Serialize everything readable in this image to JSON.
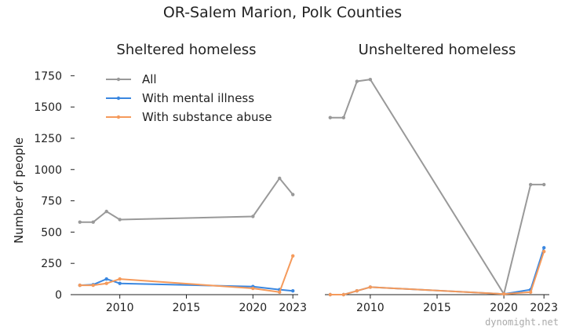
{
  "page": {
    "title": "OR-Salem Marion, Polk Counties",
    "watermark": "dynomight.net"
  },
  "colors": {
    "All": "#999999",
    "With mental illness": "#3a87e0",
    "With substance abuse": "#f59a5b"
  },
  "chart_data": [
    {
      "type": "line",
      "title": "Sheltered homeless",
      "xlabel": "",
      "ylabel": "Number of people",
      "xlim": [
        2006.6,
        2023.4
      ],
      "ylim": [
        0,
        1790
      ],
      "x_ticks": [
        2010,
        2015,
        2020,
        2023
      ],
      "y_ticks": [
        0,
        250,
        500,
        750,
        1000,
        1250,
        1500,
        1750
      ],
      "grid": false,
      "legend": "top-left",
      "series": [
        {
          "name": "All",
          "x": [
            2007,
            2008,
            2009,
            2010,
            2020,
            2022,
            2023
          ],
          "y": [
            580,
            580,
            665,
            600,
            625,
            930,
            800
          ]
        },
        {
          "name": "With mental illness",
          "x": [
            2007,
            2008,
            2009,
            2010,
            2020,
            2022,
            2023
          ],
          "y": [
            75,
            80,
            125,
            90,
            65,
            40,
            30
          ]
        },
        {
          "name": "With substance abuse",
          "x": [
            2007,
            2008,
            2009,
            2010,
            2020,
            2022,
            2023
          ],
          "y": [
            75,
            75,
            90,
            125,
            50,
            20,
            310
          ]
        }
      ]
    },
    {
      "type": "line",
      "title": "Unsheltered homeless",
      "xlabel": "",
      "ylabel": "",
      "xlim": [
        2006.6,
        2023.4
      ],
      "ylim": [
        0,
        1790
      ],
      "x_ticks": [
        2010,
        2015,
        2020,
        2023
      ],
      "y_ticks": [],
      "grid": false,
      "series": [
        {
          "name": "All",
          "x": [
            2007,
            2008,
            2009,
            2010,
            2020,
            2022,
            2023
          ],
          "y": [
            1415,
            1415,
            1705,
            1720,
            5,
            880,
            880
          ]
        },
        {
          "name": "With mental illness",
          "x": [
            2007,
            2008,
            2009,
            2010,
            2020,
            2022,
            2023
          ],
          "y": [
            0,
            0,
            30,
            60,
            5,
            40,
            375
          ]
        },
        {
          "name": "With substance abuse",
          "x": [
            2007,
            2008,
            2009,
            2010,
            2020,
            2022,
            2023
          ],
          "y": [
            0,
            0,
            30,
            60,
            5,
            20,
            345
          ]
        }
      ]
    }
  ]
}
